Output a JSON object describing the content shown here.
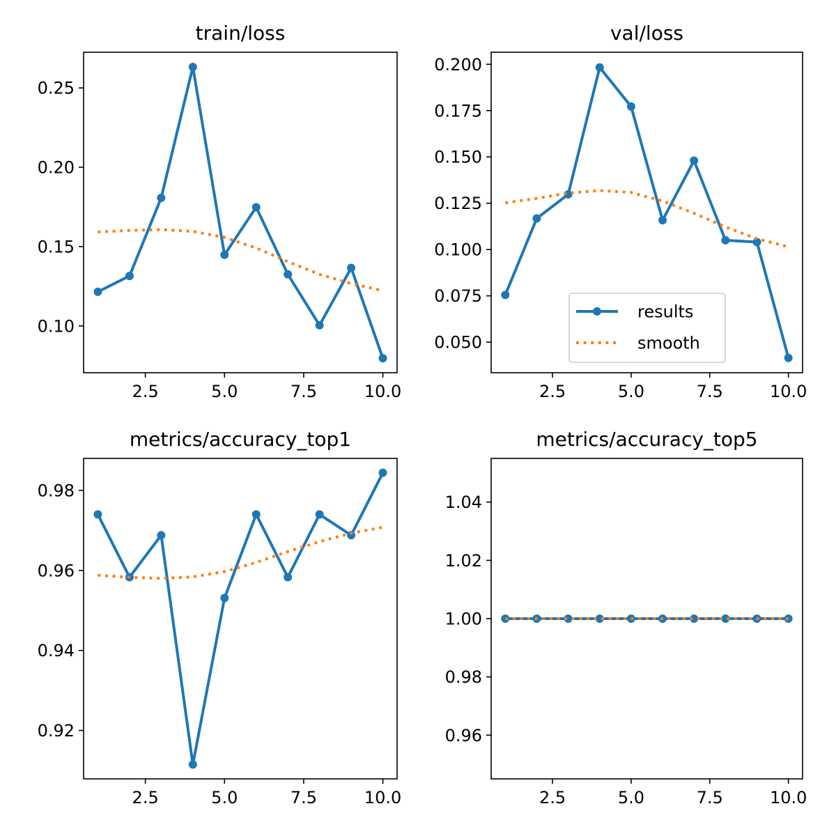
{
  "chart_data": [
    {
      "type": "line",
      "title": "train/loss",
      "xlabel": "",
      "ylabel": "",
      "x": [
        1,
        2,
        3,
        4,
        5,
        6,
        7,
        8,
        9,
        10
      ],
      "xlim": [
        0.55,
        10.45
      ],
      "ylim": [
        0.0705,
        0.2725
      ],
      "xticks": [
        2.5,
        5.0,
        7.5,
        10.0
      ],
      "xtick_labels": [
        "2.5",
        "5.0",
        "7.5",
        "10.0"
      ],
      "yticks": [
        0.1,
        0.15,
        0.2,
        0.25
      ],
      "ytick_labels": [
        "0.10",
        "0.15",
        "0.20",
        "0.25"
      ],
      "grid": false,
      "series": [
        {
          "name": "results",
          "style": "line-markers",
          "color": "#1f77b4",
          "values": [
            0.1215,
            0.1315,
            0.1807,
            0.2632,
            0.1448,
            0.1748,
            0.1325,
            0.1004,
            0.1366,
            0.0796
          ]
        },
        {
          "name": "smooth",
          "style": "dotted",
          "color": "#ff7f0e",
          "values": [
            0.1592,
            0.1602,
            0.1607,
            0.1596,
            0.1558,
            0.1491,
            0.1405,
            0.1325,
            0.1267,
            0.1222
          ]
        }
      ]
    },
    {
      "type": "line",
      "title": "val/loss",
      "xlabel": "",
      "ylabel": "",
      "x": [
        1,
        2,
        3,
        4,
        5,
        6,
        7,
        8,
        9,
        10
      ],
      "xlim": [
        0.55,
        10.45
      ],
      "ylim": [
        0.0335,
        0.2065
      ],
      "xticks": [
        2.5,
        5.0,
        7.5,
        10.0
      ],
      "xtick_labels": [
        "2.5",
        "5.0",
        "7.5",
        "10.0"
      ],
      "yticks": [
        0.05,
        0.075,
        0.1,
        0.125,
        0.15,
        0.175,
        0.2
      ],
      "ytick_labels": [
        "0.050",
        "0.075",
        "0.100",
        "0.125",
        "0.150",
        "0.175",
        "0.200"
      ],
      "grid": false,
      "legend": {
        "placement": "lower-center",
        "entries": [
          "results",
          "smooth"
        ]
      },
      "series": [
        {
          "name": "results",
          "style": "line-markers",
          "color": "#1f77b4",
          "values": [
            0.0755,
            0.1168,
            0.1298,
            0.1983,
            0.1772,
            0.1158,
            0.148,
            0.105,
            0.104,
            0.0415
          ]
        },
        {
          "name": "smooth",
          "style": "dotted",
          "color": "#ff7f0e",
          "values": [
            0.1252,
            0.1276,
            0.1305,
            0.1318,
            0.1308,
            0.1262,
            0.1196,
            0.1122,
            0.1058,
            0.1015
          ]
        }
      ]
    },
    {
      "type": "line",
      "title": "metrics/accuracy_top1",
      "xlabel": "",
      "ylabel": "",
      "x": [
        1,
        2,
        3,
        4,
        5,
        6,
        7,
        8,
        9,
        10
      ],
      "xlim": [
        0.55,
        10.45
      ],
      "ylim": [
        0.9079,
        0.988
      ],
      "xticks": [
        2.5,
        5.0,
        7.5,
        10.0
      ],
      "xtick_labels": [
        "2.5",
        "5.0",
        "7.5",
        "10.0"
      ],
      "yticks": [
        0.92,
        0.94,
        0.96,
        0.98
      ],
      "ytick_labels": [
        "0.92",
        "0.94",
        "0.96",
        "0.98"
      ],
      "grid": false,
      "series": [
        {
          "name": "results",
          "style": "line-markers",
          "color": "#1f77b4",
          "values": [
            0.974,
            0.9583,
            0.9688,
            0.9115,
            0.9531,
            0.974,
            0.9583,
            0.974,
            0.9688,
            0.9844
          ]
        },
        {
          "name": "smooth",
          "style": "dotted",
          "color": "#ff7f0e",
          "values": [
            0.9588,
            0.9583,
            0.958,
            0.9584,
            0.9597,
            0.962,
            0.9647,
            0.9672,
            0.9693,
            0.9708
          ]
        }
      ]
    },
    {
      "type": "line",
      "title": "metrics/accuracy_top5",
      "xlabel": "",
      "ylabel": "",
      "x": [
        1,
        2,
        3,
        4,
        5,
        6,
        7,
        8,
        9,
        10
      ],
      "xlim": [
        0.55,
        10.45
      ],
      "ylim": [
        0.945,
        1.055
      ],
      "xticks": [
        2.5,
        5.0,
        7.5,
        10.0
      ],
      "xtick_labels": [
        "2.5",
        "5.0",
        "7.5",
        "10.0"
      ],
      "yticks": [
        0.96,
        0.98,
        1.0,
        1.02,
        1.04
      ],
      "ytick_labels": [
        "0.96",
        "0.98",
        "1.00",
        "1.02",
        "1.04"
      ],
      "grid": false,
      "series": [
        {
          "name": "results",
          "style": "line-markers",
          "color": "#1f77b4",
          "values": [
            1.0,
            1.0,
            1.0,
            1.0,
            1.0,
            1.0,
            1.0,
            1.0,
            1.0,
            1.0
          ]
        },
        {
          "name": "smooth",
          "style": "dotted",
          "color": "#ff7f0e",
          "values": [
            1.0,
            1.0,
            1.0,
            1.0,
            1.0,
            1.0,
            1.0,
            1.0,
            1.0,
            1.0
          ]
        }
      ]
    }
  ]
}
